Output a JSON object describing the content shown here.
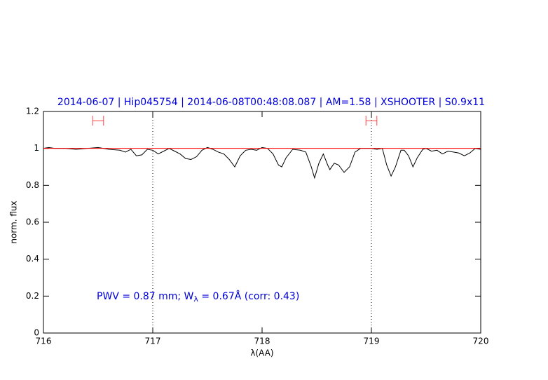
{
  "chart_data": {
    "type": "line",
    "title": "2014-06-07 | Hip045754 | 2014-06-08T00:48:08.087 | AM=1.58 | XSHOOTER | S0.9x11",
    "annotation": [
      "PWV = 0.87 mm; W",
      "λ",
      " = 0.67Å (corr: 0.43)"
    ],
    "xlabel": "λ(AA)",
    "ylabel": "norm. flux",
    "xlim": [
      716,
      720
    ],
    "ylim": [
      0,
      1.2
    ],
    "xticks": [
      716,
      717,
      718,
      719,
      720
    ],
    "yticks": [
      0,
      0.2,
      0.4,
      0.6,
      0.8,
      1,
      1.2
    ],
    "vlines": [
      717,
      719
    ],
    "series": [
      {
        "color": "#000000",
        "x": [
          716.0,
          716.05,
          716.1,
          716.2,
          716.3,
          716.4,
          716.5,
          716.6,
          716.7,
          716.75,
          716.8,
          716.85,
          716.9,
          716.95,
          717.0,
          717.05,
          717.1,
          717.15,
          717.2,
          717.25,
          717.3,
          717.35,
          717.4,
          717.45,
          717.5,
          717.55,
          717.6,
          717.65,
          717.7,
          717.75,
          717.8,
          717.85,
          717.9,
          717.95,
          718.0,
          718.05,
          718.1,
          718.15,
          718.18,
          718.22,
          718.28,
          718.35,
          718.4,
          718.45,
          718.48,
          718.52,
          718.56,
          718.6,
          718.62,
          718.66,
          718.7,
          718.75,
          718.8,
          718.85,
          718.9,
          719.0,
          719.05,
          719.1,
          719.14,
          719.18,
          719.22,
          719.27,
          719.3,
          719.34,
          719.38,
          719.42,
          719.47,
          719.5,
          719.55,
          719.6,
          719.65,
          719.7,
          719.75,
          719.8,
          719.85,
          719.9,
          719.95,
          720.0
        ],
        "values": [
          1.0,
          1.005,
          1.0,
          1.0,
          0.995,
          1.0,
          1.005,
          0.995,
          0.99,
          0.98,
          0.995,
          0.96,
          0.965,
          0.995,
          0.99,
          0.97,
          0.985,
          1.0,
          0.985,
          0.97,
          0.945,
          0.94,
          0.955,
          0.99,
          1.005,
          0.995,
          0.98,
          0.97,
          0.94,
          0.9,
          0.96,
          0.99,
          0.995,
          0.99,
          1.005,
          1.0,
          0.97,
          0.91,
          0.9,
          0.95,
          0.995,
          0.99,
          0.98,
          0.9,
          0.84,
          0.92,
          0.97,
          0.91,
          0.885,
          0.92,
          0.91,
          0.87,
          0.9,
          0.98,
          1.0,
          1.0,
          0.995,
          1.0,
          0.91,
          0.85,
          0.9,
          0.99,
          0.99,
          0.96,
          0.9,
          0.95,
          0.995,
          1.0,
          0.985,
          0.99,
          0.97,
          0.985,
          0.98,
          0.975,
          0.96,
          0.975,
          1.0,
          0.995
        ]
      },
      {
        "color": "#ff0000",
        "x": [
          716,
          720
        ],
        "values": [
          1,
          1
        ]
      }
    ],
    "intervals": {
      "color": "#ff4444",
      "items": [
        {
          "x": [
            716.45,
            716.55
          ],
          "y": 1.15
        },
        {
          "x": [
            718.95,
            719.05
          ],
          "y": 1.15
        }
      ]
    }
  }
}
